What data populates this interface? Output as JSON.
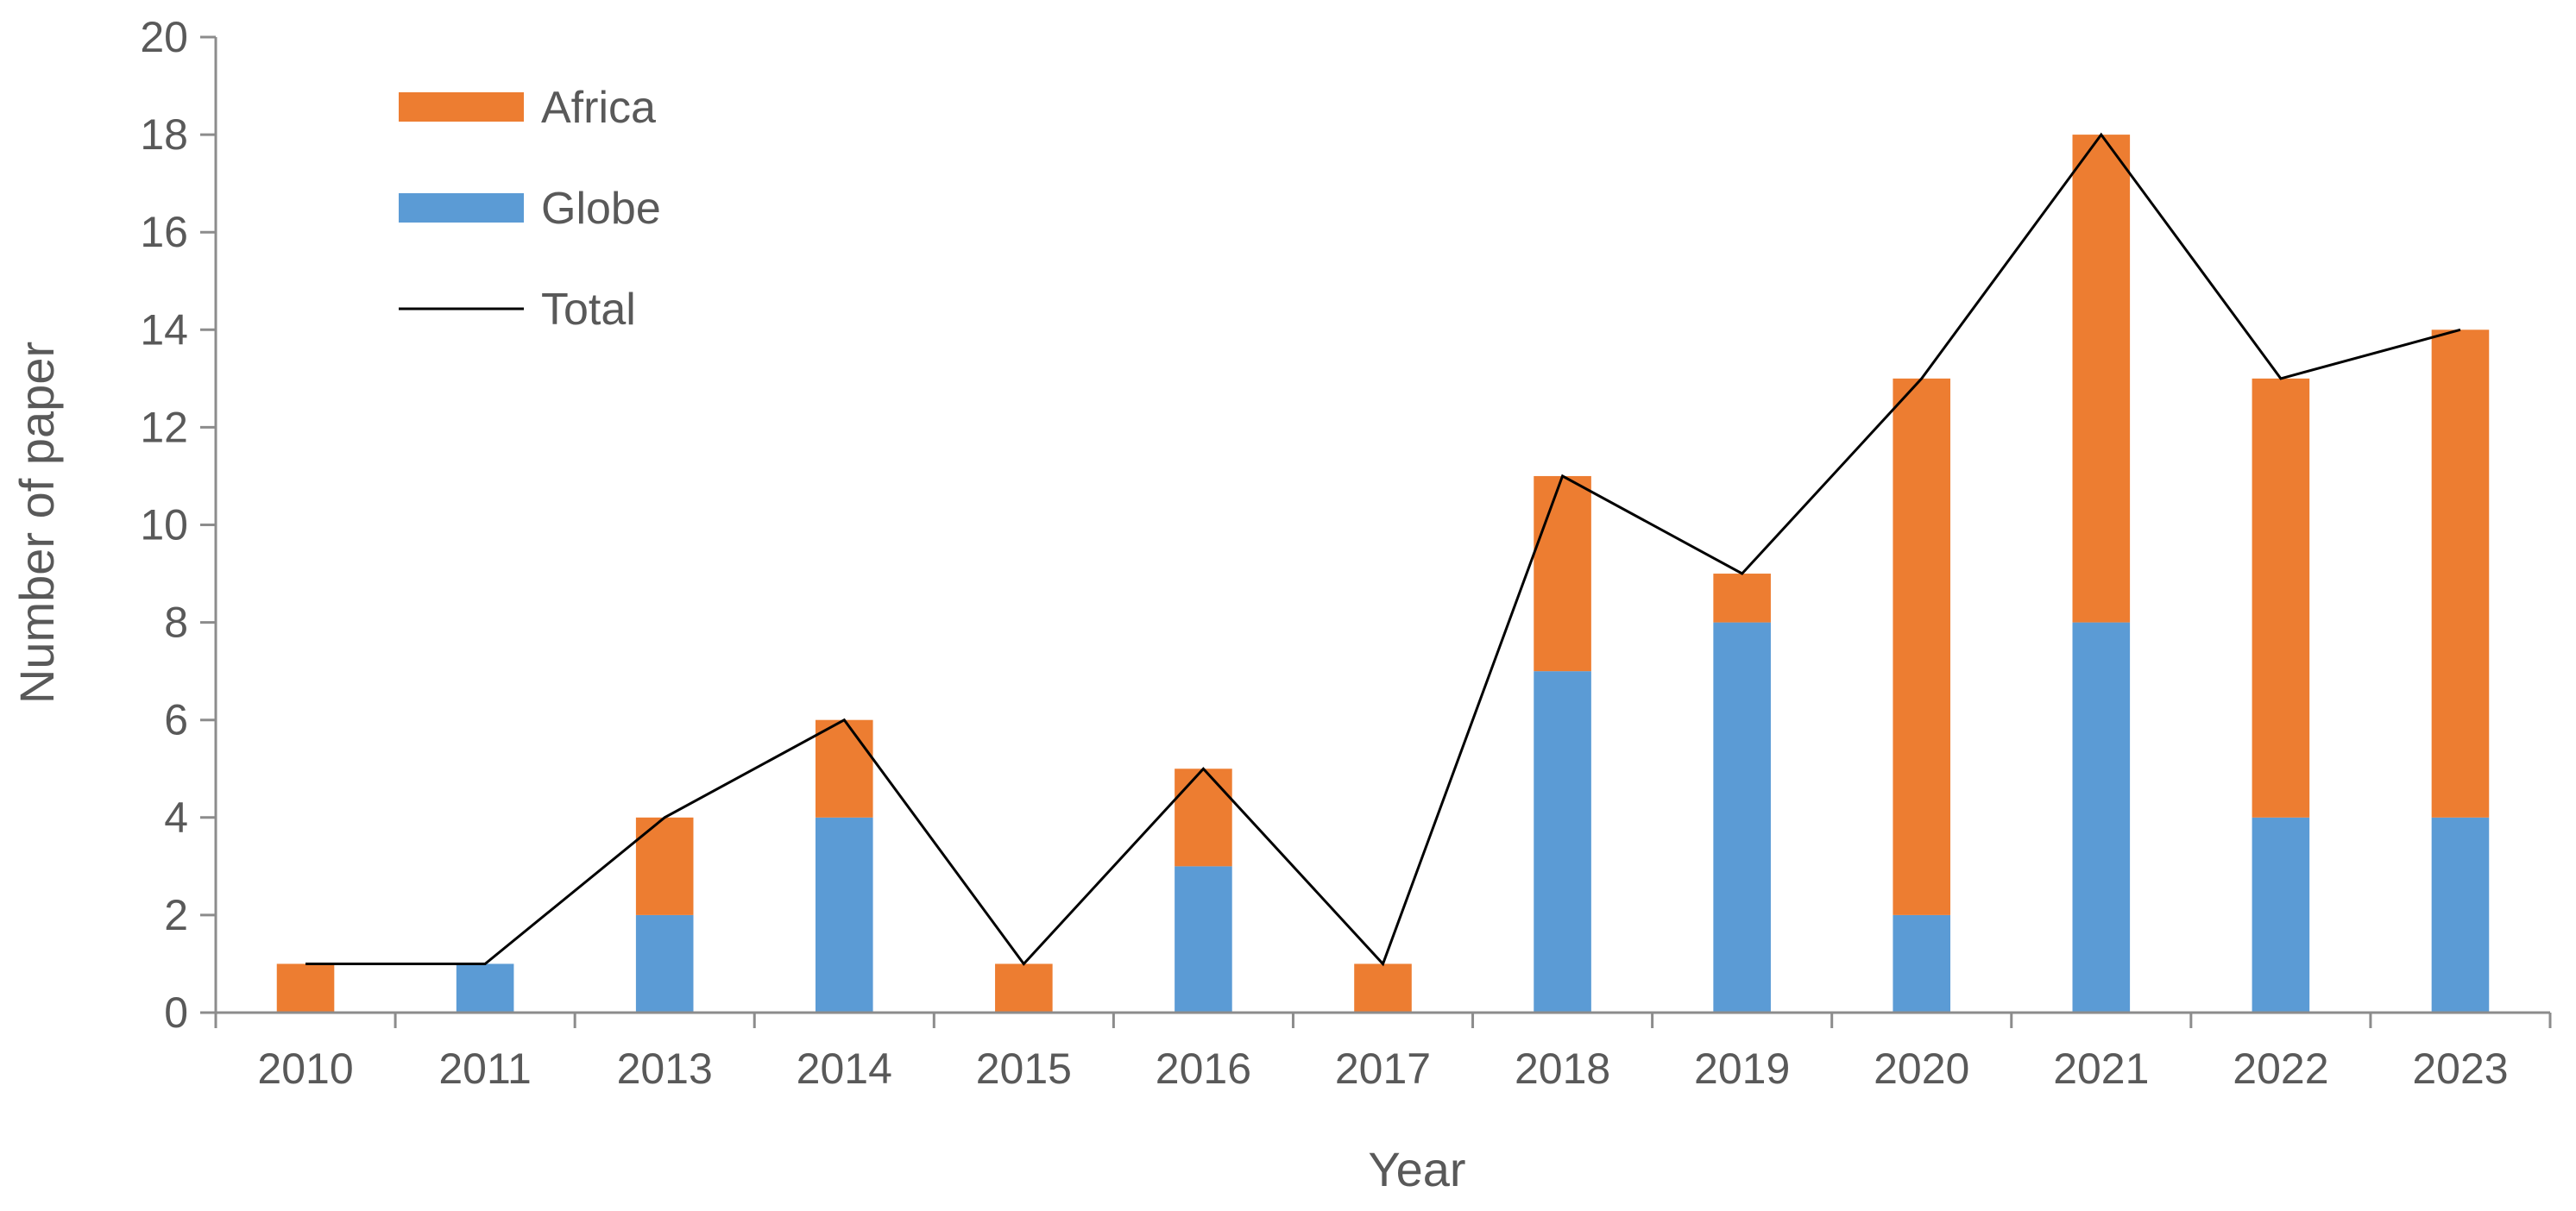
{
  "chart_data": {
    "type": "bar",
    "stacked": true,
    "categories": [
      "2010",
      "2011",
      "2013",
      "2014",
      "2015",
      "2016",
      "2017",
      "2018",
      "2019",
      "2020",
      "2021",
      "2022",
      "2023"
    ],
    "series": [
      {
        "name": "Globe",
        "kind": "bar",
        "color": "#5b9bd5",
        "values": [
          0,
          1,
          2,
          4,
          0,
          3,
          0,
          7,
          8,
          2,
          8,
          4,
          4
        ]
      },
      {
        "name": "Africa",
        "kind": "bar",
        "color": "#ed7d31",
        "values": [
          1,
          0,
          2,
          2,
          1,
          2,
          1,
          4,
          1,
          11,
          10,
          9,
          10
        ]
      },
      {
        "name": "Total",
        "kind": "line",
        "color": "#000000",
        "values": [
          1,
          1,
          4,
          6,
          1,
          5,
          1,
          11,
          9,
          13,
          18,
          13,
          14
        ]
      }
    ],
    "xlabel": "Year",
    "ylabel": "Number of paper",
    "ylim": [
      0,
      20
    ],
    "yticks": [
      0,
      2,
      4,
      6,
      8,
      10,
      12,
      14,
      16,
      18,
      20
    ],
    "grid": false,
    "legend": {
      "position": "top-left",
      "order": [
        "Africa",
        "Globe",
        "Total"
      ]
    }
  }
}
